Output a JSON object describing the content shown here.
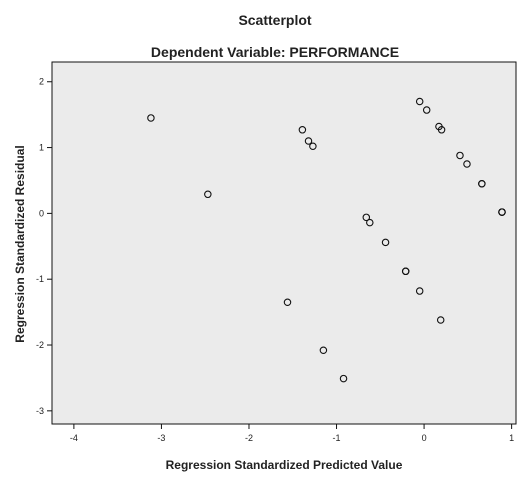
{
  "chart_data": {
    "type": "scatter",
    "title": "Scatterplot",
    "subtitle": "Dependent Variable: PERFORMANCE",
    "xlabel": "Regression Standardized Predicted Value",
    "ylabel": "Regression Standardized Residual",
    "xlim": [
      -4.25,
      1.05
    ],
    "ylim": [
      -3.2,
      2.3
    ],
    "x_ticks": [
      -4,
      -3,
      -2,
      -1,
      0,
      1
    ],
    "y_ticks": [
      -3,
      -2,
      -1,
      0,
      1,
      2
    ],
    "x_tick_labels": [
      "-4",
      "-3",
      "-2",
      "-1",
      "0",
      "1"
    ],
    "y_tick_labels": [
      "-3",
      "-2",
      "-1",
      "0",
      "1",
      "2"
    ],
    "grid": false,
    "marker": "hollow-circle",
    "colors": {
      "plot_background": "#ebebeb",
      "plot_border": "#111111",
      "marker_stroke": "#111111"
    },
    "points": [
      {
        "x": -3.12,
        "y": 1.45
      },
      {
        "x": -2.47,
        "y": 0.29
      },
      {
        "x": -1.39,
        "y": 1.27
      },
      {
        "x": -1.32,
        "y": 1.1
      },
      {
        "x": -1.27,
        "y": 1.02
      },
      {
        "x": -1.56,
        "y": -1.35
      },
      {
        "x": -1.15,
        "y": -2.08
      },
      {
        "x": -0.92,
        "y": -2.51
      },
      {
        "x": -0.66,
        "y": -0.06
      },
      {
        "x": -0.62,
        "y": -0.14
      },
      {
        "x": -0.44,
        "y": -0.44
      },
      {
        "x": -0.21,
        "y": -0.88
      },
      {
        "x": -0.21,
        "y": -0.88
      },
      {
        "x": -0.05,
        "y": -1.18
      },
      {
        "x": 0.19,
        "y": -1.62
      },
      {
        "x": -0.05,
        "y": 1.7
      },
      {
        "x": 0.03,
        "y": 1.57
      },
      {
        "x": 0.17,
        "y": 1.32
      },
      {
        "x": 0.2,
        "y": 1.27
      },
      {
        "x": 0.41,
        "y": 0.88
      },
      {
        "x": 0.49,
        "y": 0.75
      },
      {
        "x": 0.66,
        "y": 0.45
      },
      {
        "x": 0.66,
        "y": 0.45
      },
      {
        "x": 0.89,
        "y": 0.02
      },
      {
        "x": 0.89,
        "y": 0.02
      },
      {
        "x": 0.89,
        "y": 0.02
      }
    ]
  }
}
